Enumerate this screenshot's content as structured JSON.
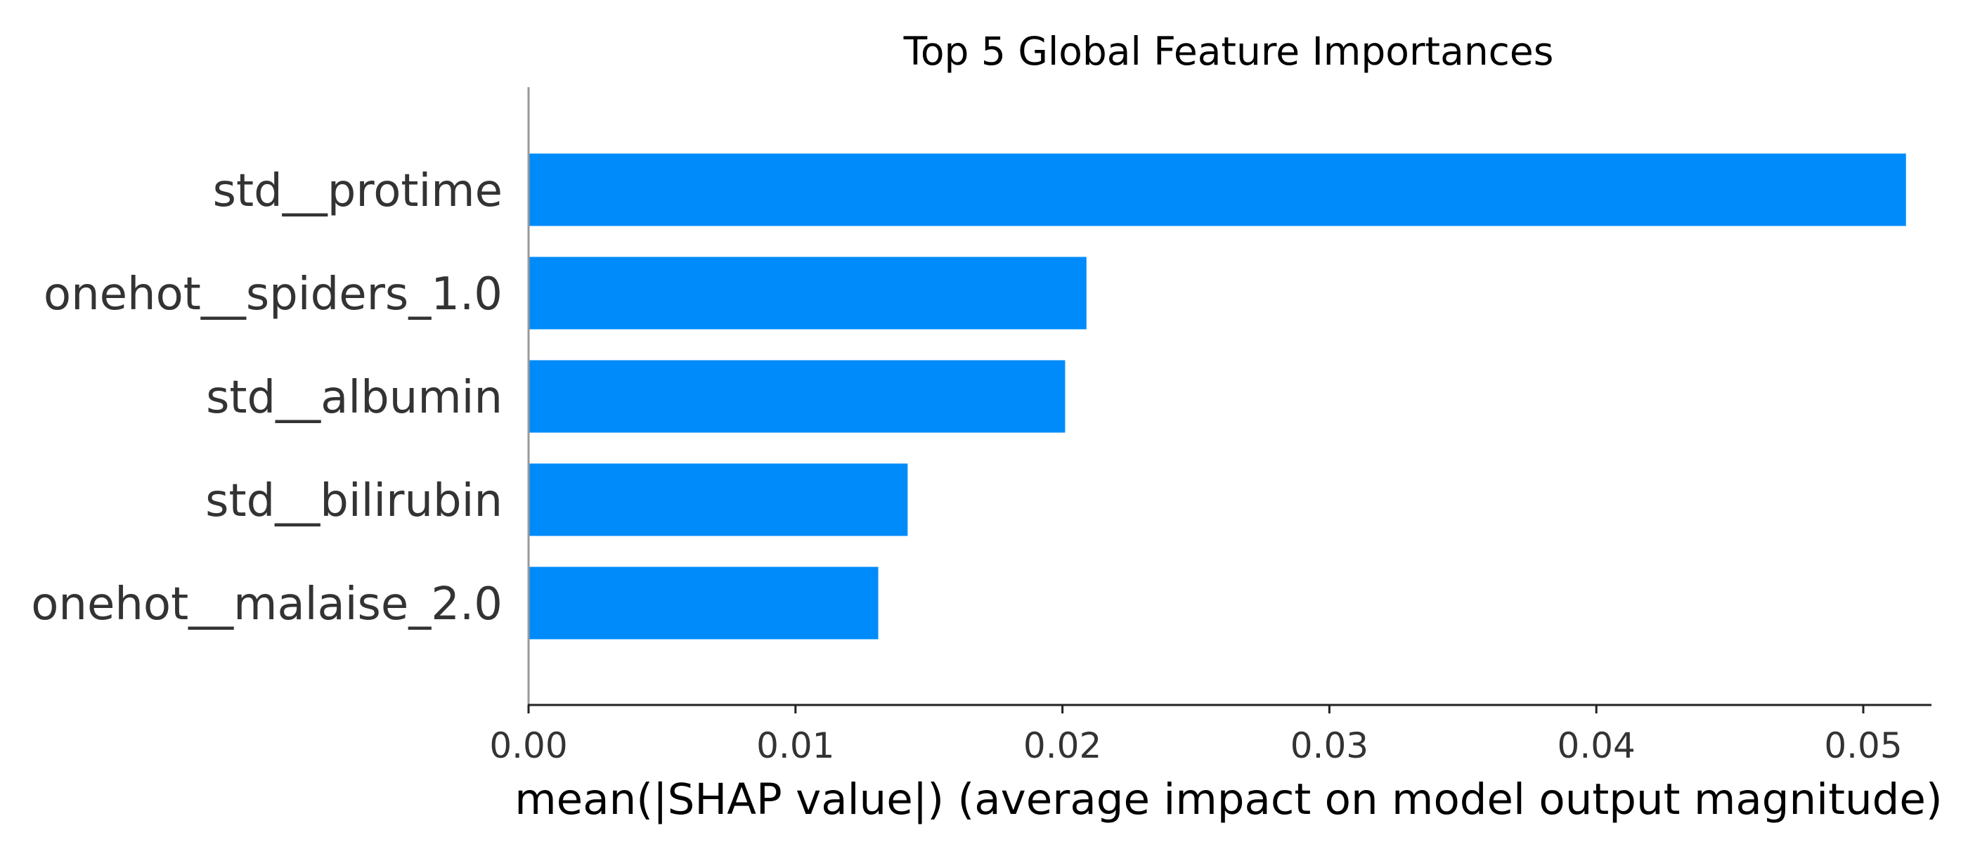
{
  "chart_data": {
    "type": "bar",
    "orientation": "horizontal",
    "title": "Top 5 Global Feature Importances",
    "xlabel": "mean(|SHAP value|) (average impact on model output magnitude)",
    "ylabel": "",
    "categories": [
      "std__protime",
      "onehot__spiders_1.0",
      "std__albumin",
      "std__bilirubin",
      "onehot__malaise_2.0"
    ],
    "values": [
      0.0516,
      0.0209,
      0.0201,
      0.0142,
      0.0131
    ],
    "xlim": [
      0,
      0.0542
    ],
    "xticks": [
      0.0,
      0.01,
      0.02,
      0.03,
      0.04,
      0.05
    ],
    "xtick_labels": [
      "0.00",
      "0.01",
      "0.02",
      "0.03",
      "0.04",
      "0.05"
    ],
    "bar_color": "#008bfb",
    "grid": false,
    "legend": "none"
  }
}
